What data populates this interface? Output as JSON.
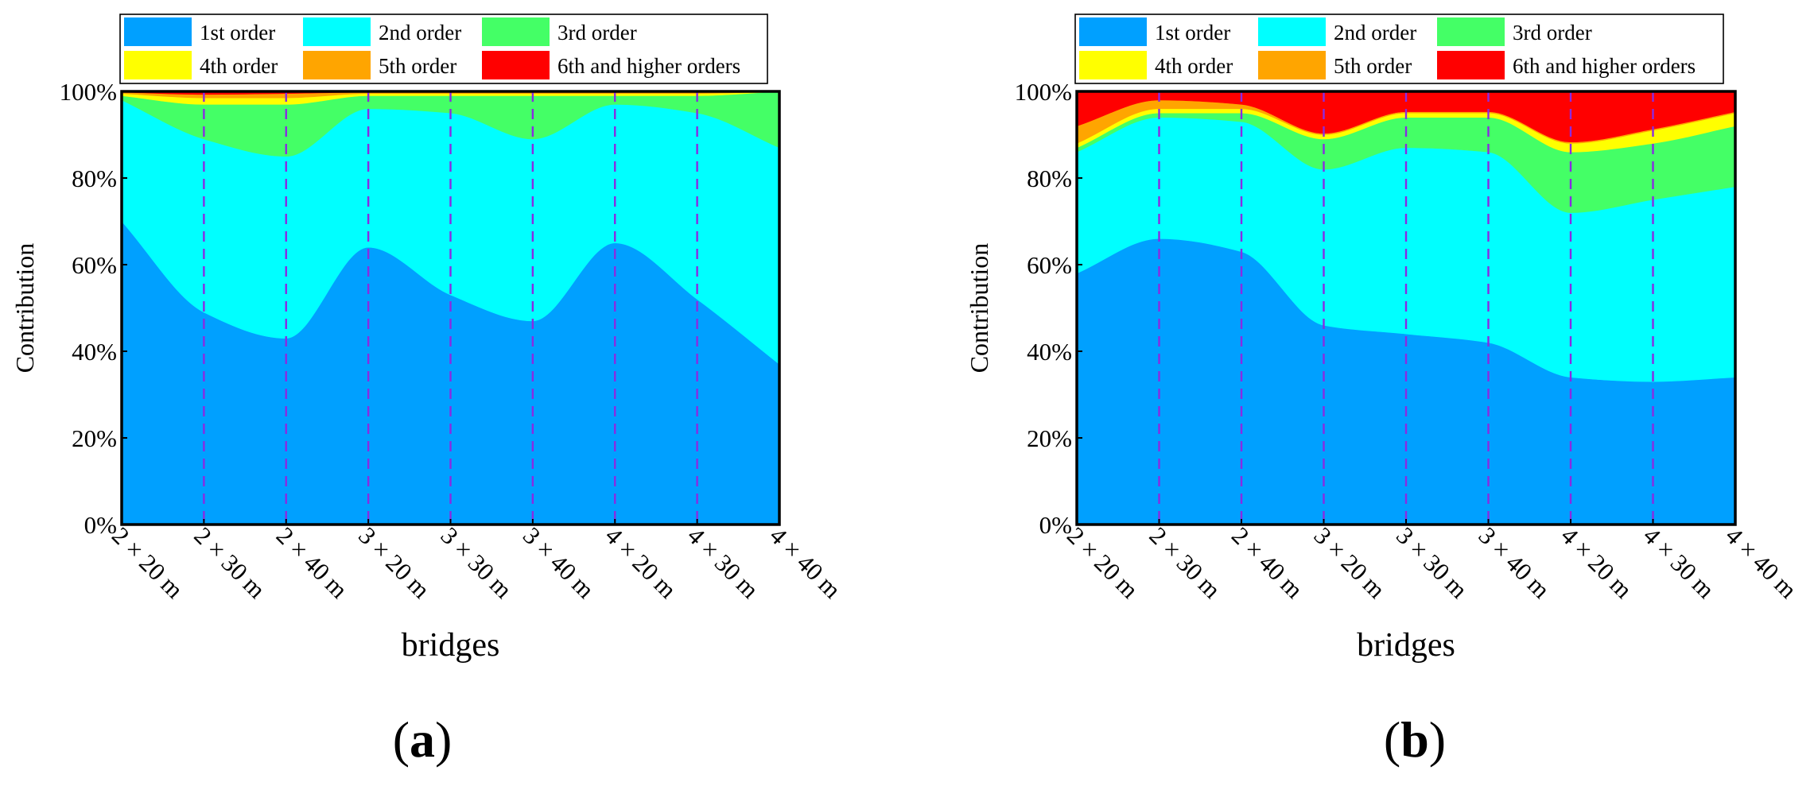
{
  "figure": {
    "panel_labels": [
      "a",
      "b"
    ]
  },
  "chart_data": [
    {
      "type": "area",
      "stacked": true,
      "panel": "a",
      "xlabel": "bridges",
      "ylabel": "Contribution",
      "ylim": [
        0,
        100
      ],
      "yticks": [
        "0%",
        "20%",
        "40%",
        "60%",
        "80%",
        "100%"
      ],
      "categories": [
        "2 × 20 m",
        "2 × 30 m",
        "2 × 40 m",
        "3 × 20 m",
        "3 × 30 m",
        "3 × 40 m",
        "4 × 20 m",
        "4 × 30 m",
        "4 × 40 m"
      ],
      "legend_position": "top",
      "series": [
        {
          "name": "1st order",
          "color": "#00A0FF",
          "values": [
            70,
            49,
            43,
            64,
            53,
            47,
            65,
            52,
            37
          ]
        },
        {
          "name": "2nd order",
          "color": "#00FFFF",
          "values": [
            28,
            40,
            42,
            32,
            42,
            42,
            32,
            43,
            50
          ]
        },
        {
          "name": "3rd order",
          "color": "#44FF66",
          "values": [
            1,
            8,
            12,
            3,
            4,
            10,
            2,
            4,
            13
          ]
        },
        {
          "name": "4th order",
          "color": "#FFFF00",
          "values": [
            0.5,
            1.5,
            1.5,
            0.5,
            0.5,
            0.5,
            0.5,
            0.5,
            0
          ]
        },
        {
          "name": "5th order",
          "color": "#FFA500",
          "values": [
            0.3,
            0.8,
            1,
            0.3,
            0.3,
            0.3,
            0.3,
            0.3,
            0
          ]
        },
        {
          "name": "6th and higher orders",
          "color": "#FF0000",
          "values": [
            0.2,
            0.7,
            0.5,
            0.2,
            0.2,
            0.2,
            0.2,
            0.2,
            0
          ]
        }
      ]
    },
    {
      "type": "area",
      "stacked": true,
      "panel": "b",
      "xlabel": "bridges",
      "ylabel": "Contribution",
      "ylim": [
        0,
        100
      ],
      "yticks": [
        "0%",
        "20%",
        "40%",
        "60%",
        "80%",
        "100%"
      ],
      "categories": [
        "2 × 20 m",
        "2 × 30 m",
        "2 × 40 m",
        "3 × 20 m",
        "3 × 30 m",
        "3 × 40 m",
        "4 × 20 m",
        "4 × 30 m",
        "4 × 40 m"
      ],
      "legend_position": "top",
      "series": [
        {
          "name": "1st order",
          "color": "#00A0FF",
          "values": [
            58,
            66,
            63,
            46,
            44,
            42,
            34,
            33,
            34
          ]
        },
        {
          "name": "2nd order",
          "color": "#00FFFF",
          "values": [
            28,
            28,
            30,
            36,
            43,
            44,
            38,
            42,
            44
          ]
        },
        {
          "name": "3rd order",
          "color": "#44FF66",
          "values": [
            1,
            1,
            2,
            7,
            7,
            8,
            14,
            13,
            14
          ]
        },
        {
          "name": "4th order",
          "color": "#FFFF00",
          "values": [
            1,
            1,
            1,
            1,
            1,
            1,
            2,
            3,
            3
          ]
        },
        {
          "name": "5th order",
          "color": "#FFA500",
          "values": [
            4,
            2,
            1,
            0.3,
            0.3,
            0.3,
            0.3,
            0.3,
            0.3
          ]
        },
        {
          "name": "6th and higher orders",
          "color": "#FF0000",
          "values": [
            8,
            2,
            3,
            9.7,
            4.7,
            4.7,
            11.7,
            8.7,
            4.7
          ]
        }
      ]
    }
  ]
}
